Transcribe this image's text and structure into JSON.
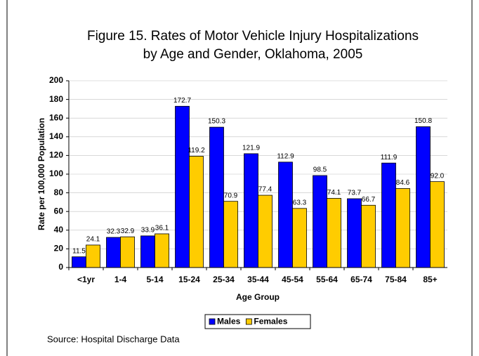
{
  "chart_data": {
    "type": "bar",
    "title": [
      "Figure 15. Rates of Motor Vehicle Injury Hospitalizations",
      "by Age and Gender, Oklahoma, 2005"
    ],
    "y_label": "Rate per 100,000 Population",
    "x_label": "Age Group",
    "source": "Source: Hospital Discharge Data",
    "categories": [
      "<1yr",
      "1-4",
      "5-14",
      "15-24",
      "25-34",
      "35-44",
      "45-54",
      "55-64",
      "65-74",
      "75-84",
      "85+"
    ],
    "series": [
      {
        "name": "Males",
        "color": "#0000ff",
        "values": [
          11.5,
          32.3,
          33.9,
          172.7,
          150.3,
          121.9,
          112.9,
          98.5,
          73.7,
          111.9,
          150.8
        ],
        "value_labels": [
          "11.5",
          "32.3",
          "33.9",
          "172.7",
          "150.3",
          "121.9",
          "112.9",
          "98.5",
          "73.7",
          "111.9",
          "150.8"
        ]
      },
      {
        "name": "Females",
        "color": "#ffcc00",
        "values": [
          24.1,
          32.9,
          36.1,
          119.2,
          70.9,
          77.4,
          63.3,
          74.1,
          66.7,
          84.6,
          92
        ],
        "value_labels": [
          "24.1",
          "32.9",
          "36.1",
          "119.2",
          "70.9",
          "77.4",
          "63.3",
          "74.1",
          "66.7",
          "84.6",
          "92.0"
        ]
      }
    ],
    "ylim": [
      0,
      200
    ],
    "yticks": [
      0,
      20,
      40,
      60,
      80,
      100,
      120,
      140,
      160,
      180,
      200
    ],
    "grid": true,
    "legend": "bottom"
  }
}
